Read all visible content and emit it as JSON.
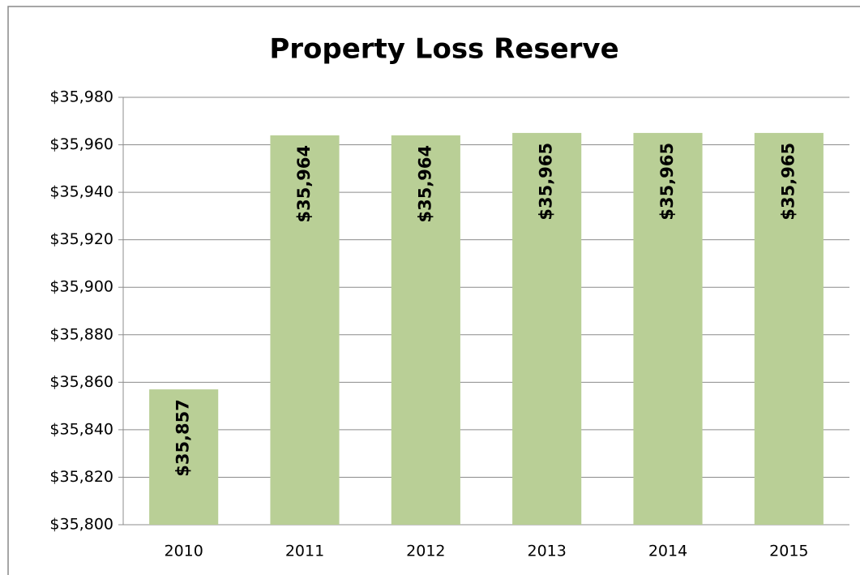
{
  "chart_data": {
    "type": "bar",
    "title": "Property Loss Reserve",
    "categories": [
      "2010",
      "2011",
      "2012",
      "2013",
      "2014",
      "2015"
    ],
    "values": [
      35857,
      35964,
      35964,
      35965,
      35965,
      35965
    ],
    "value_labels": [
      "$35,857",
      "$35,964",
      "$35,964",
      "$35,965",
      "$35,965",
      "$35,965"
    ],
    "color": "#b9cf96",
    "ylim": [
      35800,
      35980
    ],
    "yticks": [
      {
        "value": 35800,
        "label": "$35,800"
      },
      {
        "value": 35820,
        "label": "$35,820"
      },
      {
        "value": 35840,
        "label": "$35,840"
      },
      {
        "value": 35860,
        "label": "$35,860"
      },
      {
        "value": 35880,
        "label": "$35,880"
      },
      {
        "value": 35900,
        "label": "$35,900"
      },
      {
        "value": 35920,
        "label": "$35,920"
      },
      {
        "value": 35940,
        "label": "$35,940"
      },
      {
        "value": 35960,
        "label": "$35,960"
      },
      {
        "value": 35980,
        "label": "$35,980"
      }
    ],
    "grid": true
  }
}
